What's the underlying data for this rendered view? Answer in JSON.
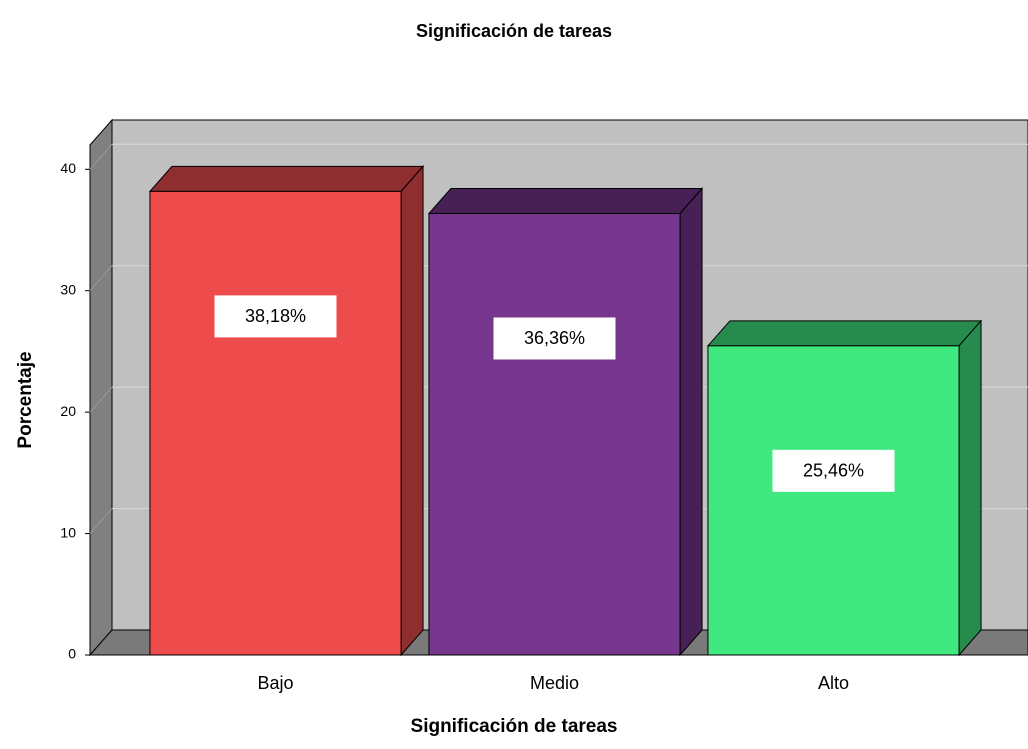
{
  "chart_data": {
    "type": "bar3d",
    "title": "Significación de tareas",
    "x_label": "Significación de tareas",
    "y_label": "Porcentaje",
    "categories": [
      "Bajo",
      "Medio",
      "Alto"
    ],
    "values": [
      38.18,
      36.36,
      25.46
    ],
    "value_labels": [
      "38,18%",
      "36,36%",
      "25,46%"
    ],
    "colors": [
      "#ee4c4c",
      "#77368e",
      "#40e880"
    ],
    "ylim": [
      0,
      42
    ],
    "yticks": [
      0,
      10,
      20,
      30,
      40
    ],
    "grid": true
  }
}
